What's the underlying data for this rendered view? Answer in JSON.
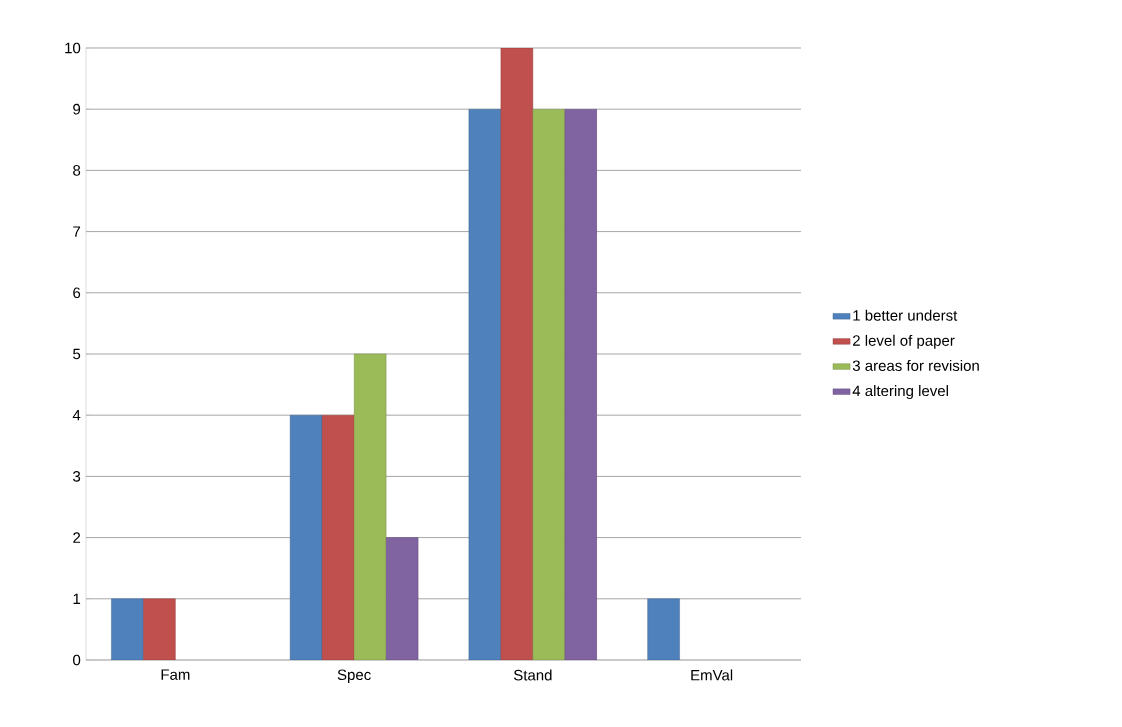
{
  "chart_data": {
    "type": "bar",
    "categories": [
      "Fam",
      "Spec",
      "Stand",
      "EmVal"
    ],
    "series": [
      {
        "name": "1 better underst",
        "color": "#4f81bd",
        "values": [
          1,
          4,
          9,
          1
        ]
      },
      {
        "name": "2 level of paper",
        "color": "#c0504d",
        "values": [
          1,
          4,
          10,
          null
        ]
      },
      {
        "name": "3 areas for revision",
        "color": "#9bbb59",
        "values": [
          null,
          5,
          9,
          null
        ]
      },
      {
        "name": "4 altering level",
        "color": "#8064a2",
        "values": [
          null,
          2,
          9,
          null
        ]
      }
    ],
    "ylim": [
      0,
      10
    ],
    "yticks": [
      0,
      1,
      2,
      3,
      4,
      5,
      6,
      7,
      8,
      9,
      10
    ],
    "grid": "y",
    "legend": "right"
  }
}
